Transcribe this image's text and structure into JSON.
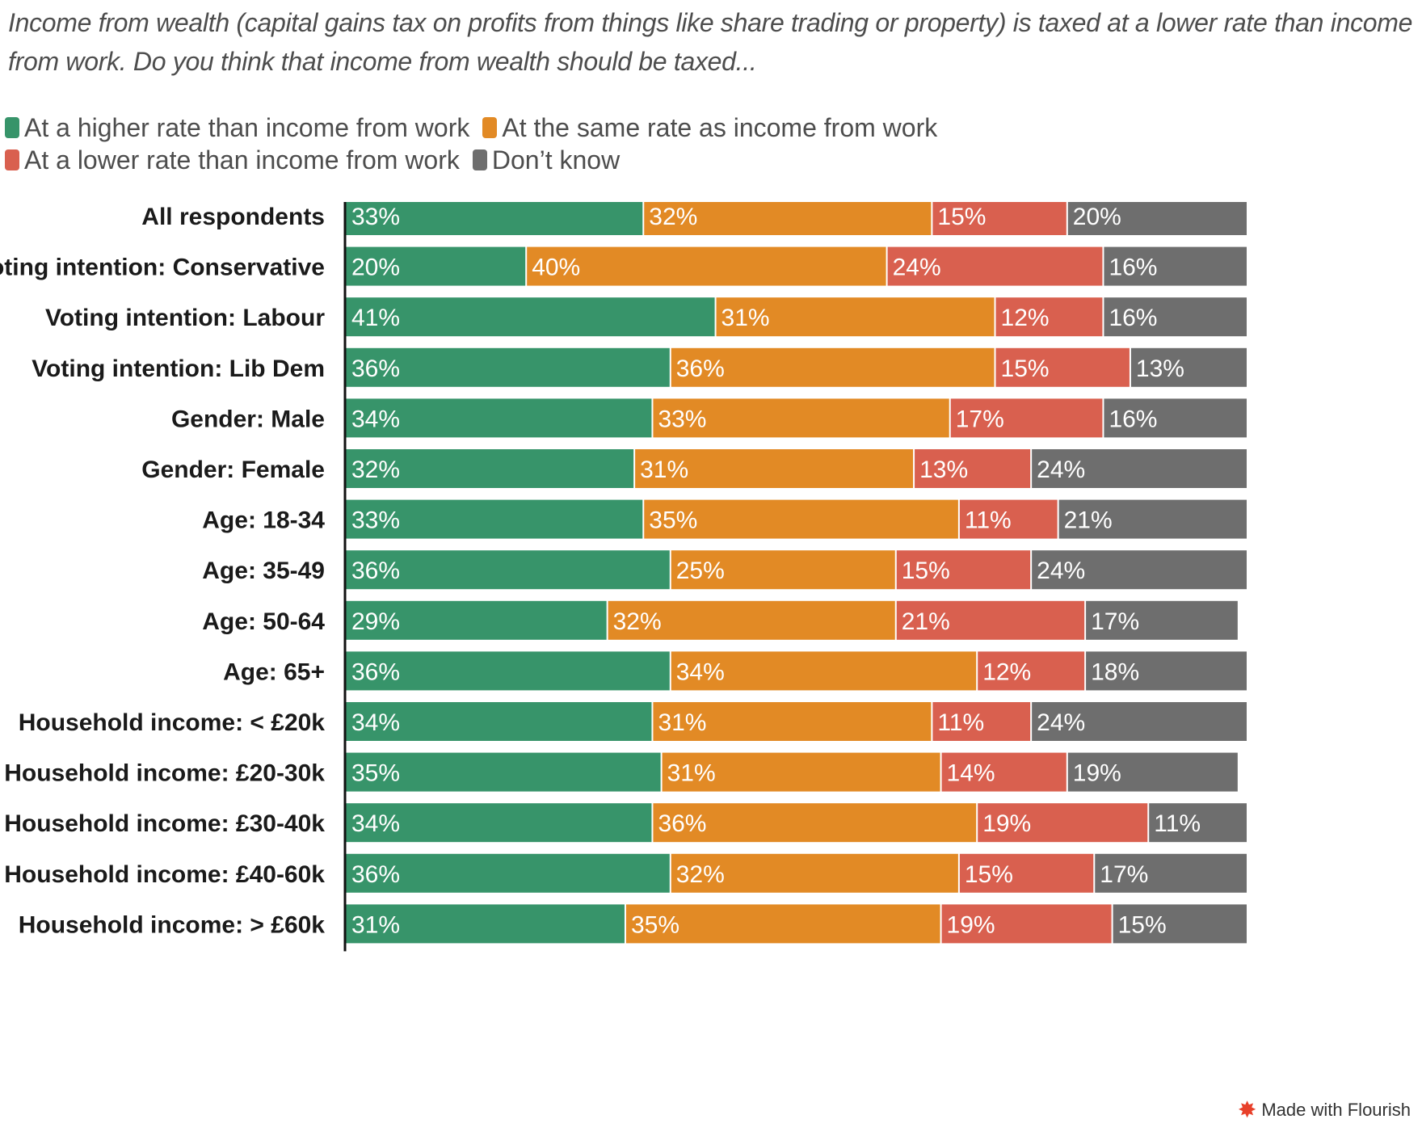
{
  "subtitle": "Income from wealth (capital gains tax on profits from things like share trading or property) is taxed at a lower rate than income from work. Do you think that income from wealth should be taxed...",
  "credit": {
    "text": "Made with Flourish",
    "icon": "flourish-logo-icon"
  },
  "colors": {
    "higher": "#37946a",
    "same": "#e28a25",
    "lower": "#d9604f",
    "dont_know": "#6e6e6e"
  },
  "chart_data": {
    "type": "bar",
    "orientation": "horizontal",
    "stacked": true,
    "value_format": "percent",
    "xlim": [
      0,
      100
    ],
    "legend_position": "top-left",
    "grid": false,
    "categories": [
      "All respondents",
      "Voting intention: Conservative",
      "Voting intention: Labour",
      "Voting intention: Lib Dem",
      "Gender: Male",
      "Gender: Female",
      "Age: 18-34",
      "Age: 35-49",
      "Age: 50-64",
      "Age: 65+",
      "Household income: < £20k",
      "Household income: £20-30k",
      "Household income: £30-40k",
      "Household income: £40-60k",
      "Household income: > £60k"
    ],
    "series": [
      {
        "name": "At a higher rate than income from work",
        "color": "#37946a",
        "values": [
          33,
          20,
          41,
          36,
          34,
          32,
          33,
          36,
          29,
          36,
          34,
          35,
          34,
          36,
          31
        ]
      },
      {
        "name": "At the same rate as income from work",
        "color": "#e28a25",
        "values": [
          32,
          40,
          31,
          36,
          33,
          31,
          35,
          25,
          32,
          34,
          31,
          31,
          36,
          32,
          35
        ]
      },
      {
        "name": "At a lower rate than income from work",
        "color": "#d9604f",
        "values": [
          15,
          24,
          12,
          15,
          17,
          13,
          11,
          15,
          21,
          12,
          11,
          14,
          19,
          15,
          19
        ]
      },
      {
        "name": "Don’t know",
        "color": "#6e6e6e",
        "values": [
          20,
          16,
          16,
          13,
          16,
          24,
          21,
          24,
          17,
          18,
          24,
          19,
          11,
          17,
          15
        ]
      }
    ]
  }
}
